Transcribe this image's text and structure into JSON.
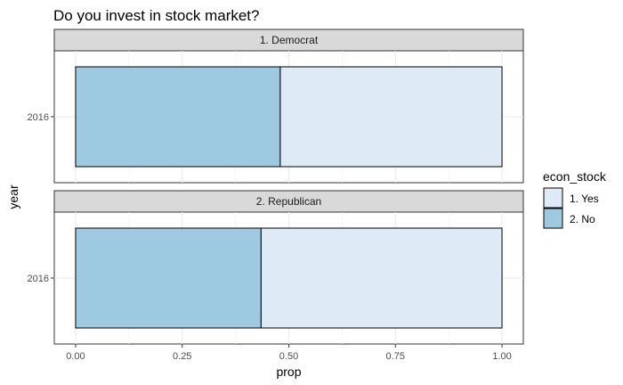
{
  "chart_data": {
    "type": "bar",
    "orientation": "horizontal",
    "stacked": true,
    "title": "Do you invest in stock market?",
    "xlabel": "prop",
    "ylabel": "year",
    "xlim": [
      0,
      1
    ],
    "x_ticks": [
      "0.00",
      "0.25",
      "0.50",
      "0.75",
      "1.00"
    ],
    "grid": true,
    "legend": {
      "title": "econ_stock",
      "position": "right",
      "entries": [
        "1. Yes",
        "2. No"
      ]
    },
    "facets": [
      {
        "label": "1. Democrat",
        "category": "2016",
        "series": [
          {
            "name": "2. No",
            "value": 0.48
          },
          {
            "name": "1. Yes",
            "value": 0.52
          }
        ]
      },
      {
        "label": "2. Republican",
        "category": "2016",
        "series": [
          {
            "name": "2. No",
            "value": 0.435
          },
          {
            "name": "1. Yes",
            "value": 0.565
          }
        ]
      }
    ],
    "colors": {
      "1. Yes": "#deebf7",
      "2. No": "#9ecae1"
    }
  }
}
